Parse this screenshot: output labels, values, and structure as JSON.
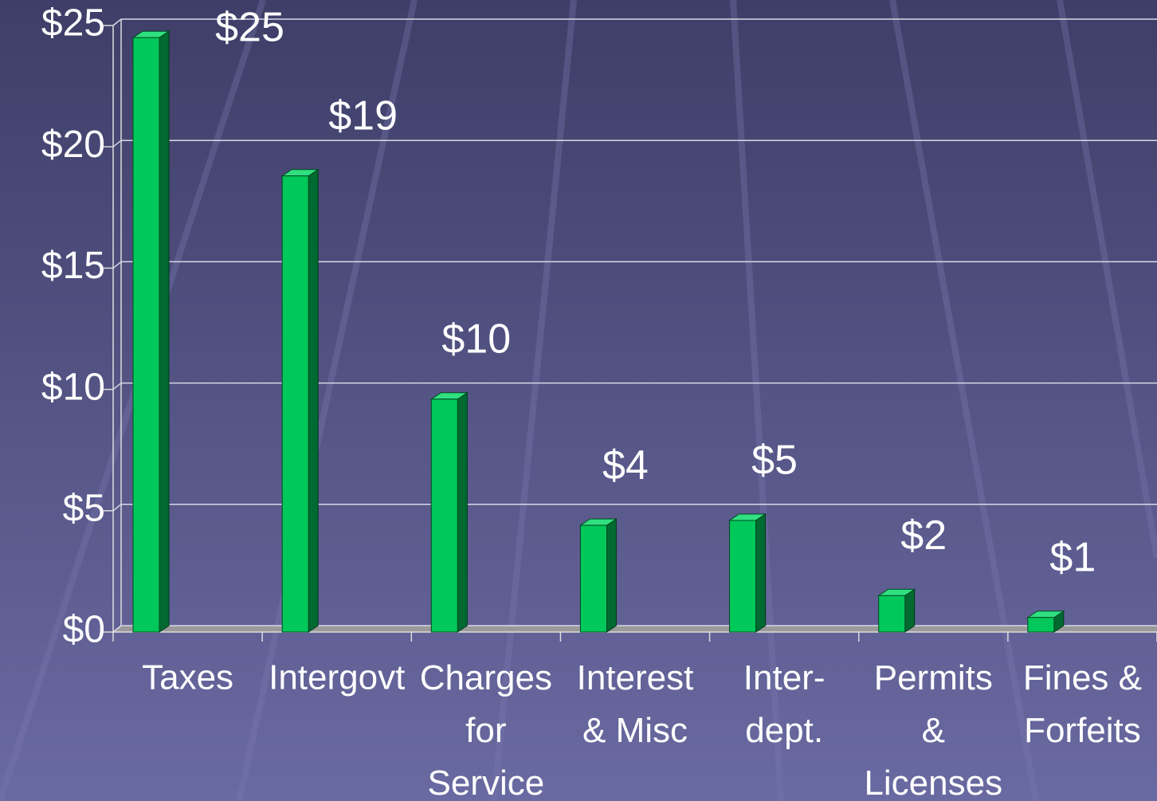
{
  "chart_data": {
    "type": "bar",
    "categories": [
      "Taxes",
      "Intergovt",
      "Charges\nfor\nService",
      "Interest\n& Misc",
      "Inter-\ndept.",
      "Permits\n&\nLicenses",
      "Fines &\nForfeits"
    ],
    "values": [
      24.5,
      18.8,
      9.6,
      4.4,
      4.6,
      1.5,
      0.6
    ],
    "value_labels": [
      "$25",
      "$19",
      "$10",
      "$4",
      "$5",
      "$2",
      "$1"
    ],
    "color": "#00c85a",
    "ylim": [
      0,
      25
    ],
    "yticks": [
      {
        "value": 0,
        "label": "$0"
      },
      {
        "value": 5,
        "label": "$5"
      },
      {
        "value": 10,
        "label": "$10"
      },
      {
        "value": 15,
        "label": "$15"
      },
      {
        "value": 20,
        "label": "$20"
      },
      {
        "value": 25,
        "label": "$25"
      }
    ],
    "grid": true
  }
}
